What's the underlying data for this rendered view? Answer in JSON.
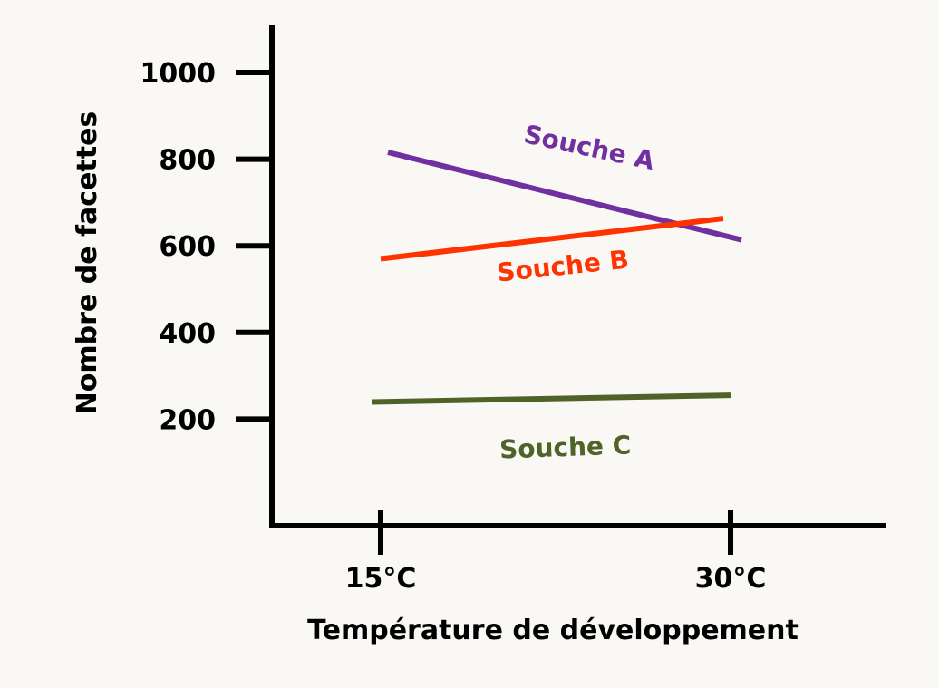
{
  "chart_data": {
    "type": "line",
    "x_categories": [
      "15°C",
      "30°C"
    ],
    "xlabel": "Température de développement",
    "ylabel": "Nombre de facettes",
    "y_ticks": [
      200,
      400,
      600,
      800,
      1000
    ],
    "grid": false,
    "series": [
      {
        "name": "Souche A",
        "color": "#7030a0",
        "values": [
          820,
          620
        ]
      },
      {
        "name": "Souche B",
        "color": "#ff3300",
        "values": [
          570,
          665
        ]
      },
      {
        "name": "Souche C",
        "color": "#4f6228",
        "values": [
          240,
          255
        ]
      }
    ]
  }
}
